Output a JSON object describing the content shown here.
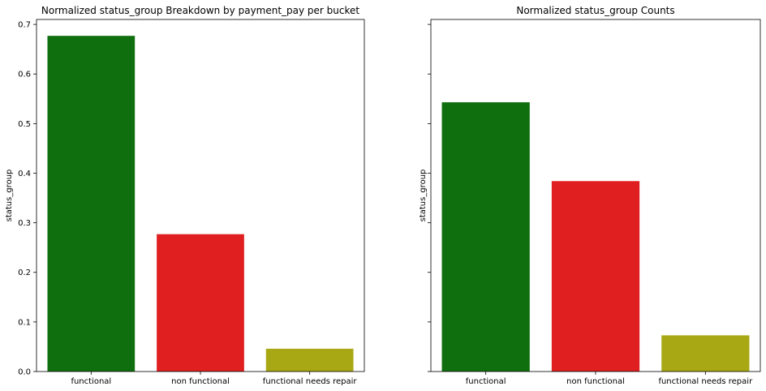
{
  "chart_data": [
    {
      "type": "bar",
      "title": "Normalized status_group Breakdown by payment_pay per bucket",
      "xlabel": "",
      "ylabel": "status_group",
      "categories": [
        "functional",
        "non functional",
        "functional needs repair"
      ],
      "values": [
        0.677,
        0.277,
        0.046
      ],
      "colors": [
        "#0f6f0f",
        "#e02020",
        "#a8a814"
      ],
      "ylim": [
        0,
        0.71
      ],
      "yticks": [
        0.0,
        0.1,
        0.2,
        0.3,
        0.4,
        0.5,
        0.6,
        0.7
      ],
      "ytick_labels": [
        "0.0",
        "0.1",
        "0.2",
        "0.3",
        "0.4",
        "0.5",
        "0.6",
        "0.7"
      ],
      "grid": false,
      "legend": "none"
    },
    {
      "type": "bar",
      "title": "Normalized status_group Counts",
      "xlabel": "",
      "ylabel": "status_group",
      "categories": [
        "functional",
        "non functional",
        "functional needs repair"
      ],
      "values": [
        0.543,
        0.384,
        0.073
      ],
      "colors": [
        "#0f6f0f",
        "#e02020",
        "#a8a814"
      ],
      "ylim": [
        0,
        0.71
      ],
      "yticks": [
        0.0,
        0.1,
        0.2,
        0.3,
        0.4,
        0.5,
        0.6,
        0.7
      ],
      "ytick_labels": [],
      "grid": false,
      "legend": "none"
    }
  ]
}
